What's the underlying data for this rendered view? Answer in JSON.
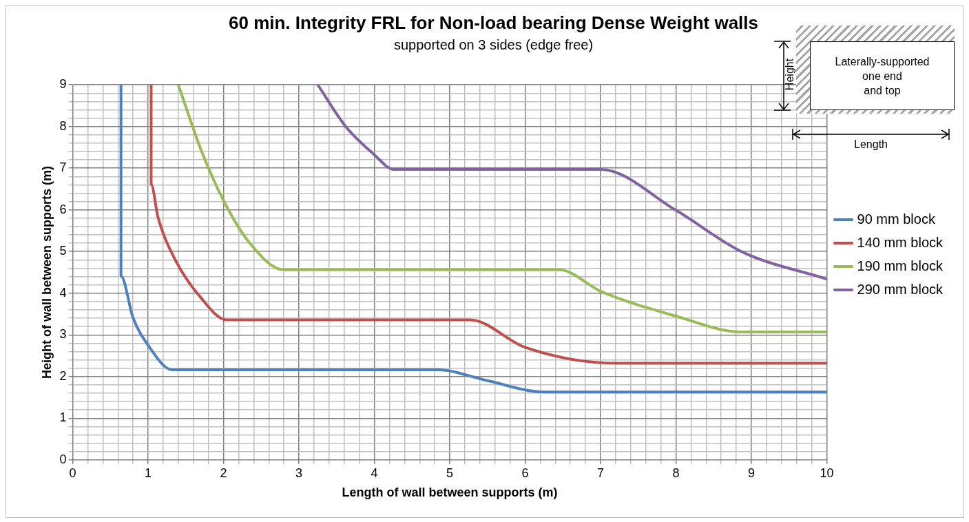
{
  "chart_data": {
    "type": "line",
    "title": "60 min. Integrity FRL for Non-load bearing Dense Weight walls",
    "subtitle": "supported on 3 sides (edge free)",
    "xlabel": "Length of wall between supports (m)",
    "ylabel": "Height of wall between supports (m)",
    "annotations": [
      "Laterally-supported\none end\nand top",
      "Height",
      "Length"
    ],
    "series": [
      {
        "name": "90 mm block",
        "color": "#4f81bd",
        "x": [
          0.64,
          0.64,
          0.8,
          1.0,
          1.32,
          4.85,
          5.5,
          6.25,
          10
        ],
        "values": [
          9,
          4.41,
          3.41,
          2.75,
          2.16,
          2.16,
          1.9,
          1.63,
          1.63
        ]
      },
      {
        "name": "140 mm block",
        "color": "#c0504d",
        "x": [
          1.04,
          1.04,
          1.13,
          1.36,
          1.7,
          2.04,
          5.27,
          6.0,
          7.2,
          10
        ],
        "values": [
          9,
          6.61,
          5.83,
          4.8,
          3.89,
          3.36,
          3.36,
          2.7,
          2.32,
          2.32
        ]
      },
      {
        "name": "190 mm block",
        "color": "#9bbb59",
        "x": [
          1.4,
          1.71,
          2.01,
          2.34,
          2.8,
          6.45,
          7.02,
          8.0,
          8.86,
          10
        ],
        "values": [
          9,
          7.4,
          6.19,
          5.22,
          4.56,
          4.56,
          4.03,
          3.45,
          3.07,
          3.07
        ]
      },
      {
        "name": "290 mm block",
        "color": "#8064a2",
        "x": [
          3.25,
          3.62,
          3.99,
          4.26,
          7.0,
          8.0,
          8.88,
          10
        ],
        "values": [
          9,
          8.0,
          7.34,
          6.97,
          6.97,
          5.99,
          4.99,
          4.34
        ]
      }
    ],
    "xlim": [
      0,
      10
    ],
    "ylim": [
      0,
      9
    ],
    "xticks": [
      0,
      {
        "value": 0.2,
        "label": null
      },
      {
        "value": 0.4,
        "label": null
      },
      {
        "value": 0.6,
        "label": null
      },
      {
        "value": 0.8,
        "label": null
      },
      1,
      {
        "value": 1.2,
        "label": null
      },
      {
        "value": 1.4,
        "label": null
      },
      {
        "value": 1.6,
        "label": null
      },
      {
        "value": 1.8,
        "label": null
      },
      2,
      {
        "value": 2.2,
        "label": null
      },
      {
        "value": 2.4,
        "label": null
      },
      {
        "value": 2.6,
        "label": null
      },
      {
        "value": 2.8,
        "label": null
      },
      3,
      {
        "value": 3.2,
        "label": null
      },
      {
        "value": 3.4,
        "label": null
      },
      {
        "value": 3.6,
        "label": null
      },
      {
        "value": 3.8,
        "label": null
      },
      4,
      {
        "value": 4.2,
        "label": null
      },
      {
        "value": 4.4,
        "label": null
      },
      {
        "value": 4.6,
        "label": null
      },
      {
        "value": 4.8,
        "label": null
      },
      5,
      {
        "value": 5.2,
        "label": null
      },
      {
        "value": 5.4,
        "label": null
      },
      {
        "value": 5.6,
        "label": null
      },
      {
        "value": 5.8,
        "label": null
      },
      6,
      {
        "value": 6.2,
        "label": null
      },
      {
        "value": 6.4,
        "label": null
      },
      {
        "value": 6.6,
        "label": null
      },
      {
        "value": 6.8,
        "label": null
      },
      7,
      {
        "value": 7.2,
        "label": null
      },
      {
        "value": 7.4,
        "label": null
      },
      {
        "value": 7.6,
        "label": null
      },
      {
        "value": 7.8,
        "label": null
      },
      8,
      {
        "value": 8.2,
        "label": null
      },
      {
        "value": 8.4,
        "label": null
      },
      {
        "value": 8.6,
        "label": null
      },
      {
        "value": 8.8,
        "label": null
      },
      9,
      {
        "value": 9.2,
        "label": null
      },
      {
        "value": 9.4,
        "label": null
      },
      {
        "value": 9.6,
        "label": null
      },
      {
        "value": 9.8,
        "label": null
      },
      10
    ],
    "yticks": [
      0,
      {
        "value": 0.2,
        "label": null
      },
      {
        "value": 0.4,
        "label": null
      },
      {
        "value": 0.6,
        "label": null
      },
      {
        "value": 0.8,
        "label": null
      },
      1,
      {
        "value": 1.2,
        "label": null
      },
      {
        "value": 1.4,
        "label": null
      },
      {
        "value": 1.6,
        "label": null
      },
      {
        "value": 1.8,
        "label": null
      },
      2,
      {
        "value": 2.2,
        "label": null
      },
      {
        "value": 2.4,
        "label": null
      },
      {
        "value": 2.6,
        "label": null
      },
      {
        "value": 2.8,
        "label": null
      },
      3,
      {
        "value": 3.2,
        "label": null
      },
      {
        "value": 3.4,
        "label": null
      },
      {
        "value": 3.6,
        "label": null
      },
      {
        "value": 3.8,
        "label": null
      },
      4,
      {
        "value": 4.2,
        "label": null
      },
      {
        "value": 4.4,
        "label": null
      },
      {
        "value": 4.6,
        "label": null
      },
      {
        "value": 4.8,
        "label": null
      },
      5,
      {
        "value": 5.2,
        "label": null
      },
      {
        "value": 5.4,
        "label": null
      },
      {
        "value": 5.6,
        "label": null
      },
      {
        "value": 5.8,
        "label": null
      },
      6,
      {
        "value": 6.2,
        "label": null
      },
      {
        "value": 6.4,
        "label": null
      },
      {
        "value": 6.6,
        "label": null
      },
      {
        "value": 6.8,
        "label": null
      },
      7,
      {
        "value": 7.2,
        "label": null
      },
      {
        "value": 7.4,
        "label": null
      },
      {
        "value": 7.6,
        "label": null
      },
      {
        "value": 7.8,
        "label": null
      },
      8,
      {
        "value": 8.2,
        "label": null
      },
      {
        "value": 8.4,
        "label": null
      },
      {
        "value": 8.6,
        "label": null
      },
      {
        "value": 8.8,
        "label": null
      },
      9
    ],
    "grid": true,
    "legend": "right",
    "marker": "none",
    "line_style": "solid"
  }
}
